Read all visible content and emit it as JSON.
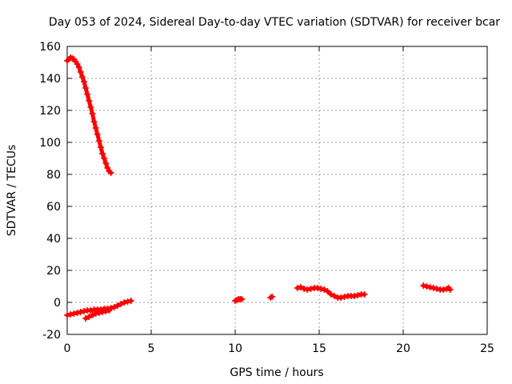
{
  "chart_data": {
    "type": "scatter",
    "title": "Day 053 of 2024, Sidereal Day-to-day VTEC variation (SDTVAR) for receiver bcar",
    "xlabel": "GPS time / hours",
    "ylabel": "SDTVAR / TECUs",
    "xlim": [
      0,
      25
    ],
    "ylim": [
      -20,
      160
    ],
    "xticks": [
      0,
      5,
      10,
      15,
      20,
      25
    ],
    "yticks": [
      -20,
      0,
      20,
      40,
      60,
      80,
      100,
      120,
      140,
      160
    ],
    "grid": true,
    "marker_color": "#ff0000",
    "series": [
      {
        "name": "SDTVAR",
        "segments": [
          [
            [
              0.0,
              151
            ],
            [
              0.1,
              152
            ],
            [
              0.2,
              153
            ],
            [
              0.3,
              152.5
            ],
            [
              0.4,
              152
            ],
            [
              0.5,
              150.5
            ],
            [
              0.6,
              149
            ],
            [
              0.7,
              147
            ],
            [
              0.8,
              144
            ],
            [
              0.9,
              141
            ],
            [
              1.0,
              138
            ],
            [
              1.1,
              134
            ],
            [
              1.2,
              130
            ],
            [
              1.3,
              126
            ],
            [
              1.4,
              122
            ],
            [
              1.5,
              118
            ],
            [
              1.6,
              113
            ],
            [
              1.7,
              109
            ],
            [
              1.8,
              105
            ],
            [
              1.9,
              101
            ],
            [
              2.0,
              97
            ],
            [
              2.1,
              93
            ],
            [
              2.2,
              90
            ],
            [
              2.3,
              87
            ],
            [
              2.4,
              84
            ],
            [
              2.5,
              82
            ],
            [
              2.6,
              81
            ]
          ],
          [
            [
              0.0,
              -8
            ],
            [
              0.2,
              -7.5
            ],
            [
              0.4,
              -7
            ],
            [
              0.6,
              -6.5
            ],
            [
              0.8,
              -6
            ],
            [
              1.0,
              -5.5
            ],
            [
              1.2,
              -5
            ],
            [
              1.4,
              -5
            ],
            [
              1.6,
              -4.5
            ],
            [
              1.8,
              -4.5
            ],
            [
              2.0,
              -4.5
            ],
            [
              2.2,
              -4
            ],
            [
              2.4,
              -4
            ],
            [
              2.6,
              -3.5
            ],
            [
              2.8,
              -3
            ],
            [
              3.0,
              -2
            ],
            [
              3.2,
              -1
            ],
            [
              3.4,
              0
            ],
            [
              3.6,
              0.5
            ],
            [
              3.8,
              1
            ]
          ],
          [
            [
              1.1,
              -10
            ],
            [
              1.3,
              -9
            ],
            [
              1.5,
              -8
            ],
            [
              1.7,
              -7
            ],
            [
              1.9,
              -6.5
            ],
            [
              2.1,
              -6
            ],
            [
              2.3,
              -5.5
            ],
            [
              2.5,
              -5
            ]
          ],
          [
            [
              10.0,
              1
            ],
            [
              10.1,
              1.5
            ],
            [
              10.2,
              2
            ],
            [
              10.3,
              2
            ],
            [
              10.4,
              2
            ]
          ],
          [
            [
              12.1,
              3
            ],
            [
              12.2,
              3.5
            ]
          ],
          [
            [
              13.7,
              9
            ],
            [
              13.9,
              9.5
            ],
            [
              14.1,
              8.5
            ],
            [
              14.3,
              8
            ],
            [
              14.5,
              8.5
            ],
            [
              14.7,
              9
            ],
            [
              14.9,
              9
            ],
            [
              15.1,
              8.5
            ],
            [
              15.3,
              8
            ],
            [
              15.5,
              7
            ],
            [
              15.7,
              5
            ],
            [
              15.9,
              4
            ],
            [
              16.1,
              3
            ],
            [
              16.3,
              3
            ],
            [
              16.5,
              3.5
            ],
            [
              16.7,
              4
            ],
            [
              16.9,
              4
            ],
            [
              17.1,
              4
            ],
            [
              17.3,
              4.5
            ],
            [
              17.5,
              5
            ],
            [
              17.7,
              5
            ]
          ],
          [
            [
              21.2,
              10.5
            ],
            [
              21.4,
              10
            ],
            [
              21.6,
              9.5
            ],
            [
              21.8,
              9
            ],
            [
              22.0,
              8.5
            ],
            [
              22.2,
              8
            ],
            [
              22.4,
              8
            ],
            [
              22.6,
              8.5
            ],
            [
              22.7,
              9
            ],
            [
              22.8,
              8
            ]
          ]
        ]
      }
    ]
  }
}
